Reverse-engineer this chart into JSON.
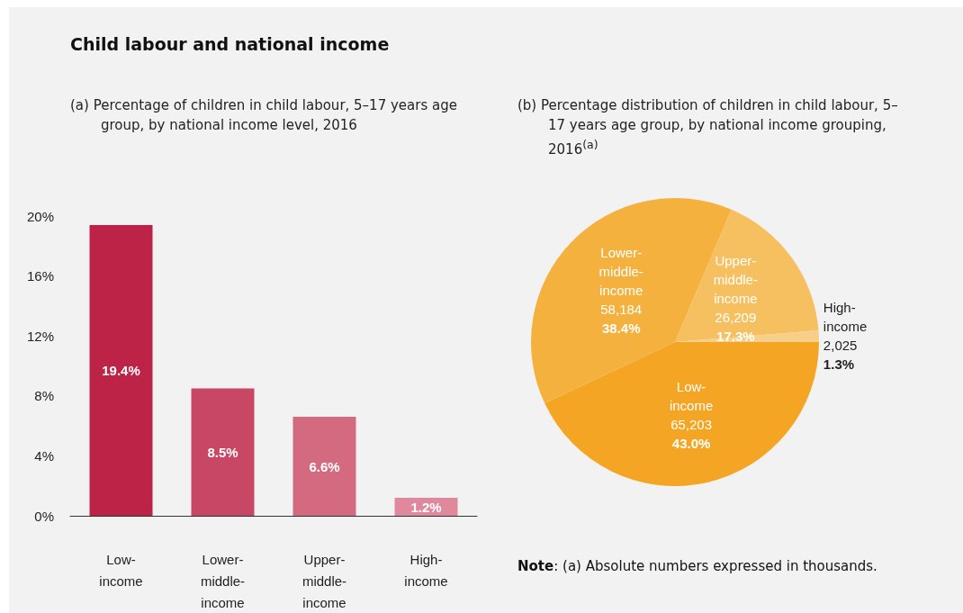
{
  "chart_data": [
    {
      "type": "bar",
      "title": "Child labour and national income",
      "subtitle": "(a)  Percentage of children in child labour, 5–17 years age group, by national income level, 2016",
      "categories": [
        "Low-income",
        "Lower-middle-income",
        "Upper-middle-income",
        "High-income"
      ],
      "values": [
        19.4,
        8.5,
        6.6,
        1.2
      ],
      "colors": [
        "#bc2346",
        "#c74764",
        "#d46a80",
        "#e0899c"
      ],
      "value_labels": [
        "19.4%",
        "8.5%",
        "6.6%",
        "1.2%"
      ],
      "ylim": [
        0,
        20
      ],
      "yticks": [
        {
          "value": 0,
          "label": "0%"
        },
        {
          "value": 4,
          "label": "4%"
        },
        {
          "value": 8,
          "label": "8%"
        },
        {
          "value": 12,
          "label": "12%"
        },
        {
          "value": 16,
          "label": "16%"
        },
        {
          "value": 20,
          "label": "20%"
        }
      ],
      "grid": false,
      "legend": false
    },
    {
      "type": "pie",
      "title": "(b)  Percentage distribution of children in child labour, 5–17 years age group, by national income grouping, 2016$^{(a)}$",
      "categories": [
        "Low-income",
        "Lower-middle-income",
        "Upper-middle-income",
        "High-income"
      ],
      "values": [
        43.0,
        38.4,
        17.3,
        1.3
      ],
      "colors": [
        "#f4a523",
        "#f5b13d",
        "#f6c060",
        "#f8cf88"
      ],
      "value_labels": [
        "65,203\n43.0%",
        "58,184\n38.4%",
        "26,209\n17.3%",
        "2,025\n1.3%"
      ],
      "legend": false,
      "annotations": [
        "Note: (a) Absolute numbers expressed in thousands."
      ]
    }
  ]
}
